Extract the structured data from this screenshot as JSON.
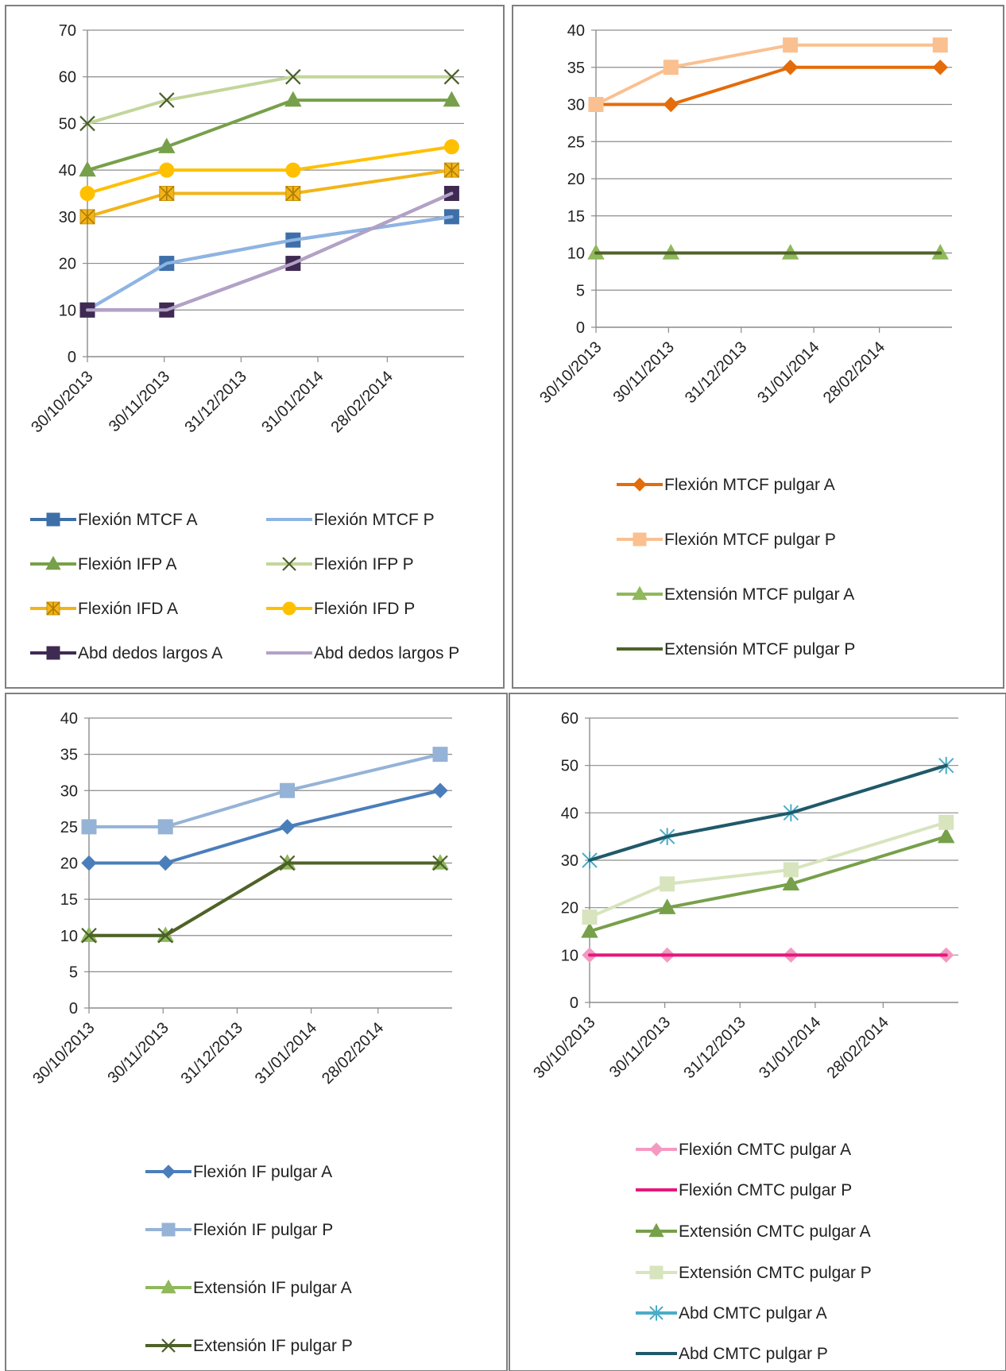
{
  "chart_data": [
    {
      "type": "line",
      "x_labels": [
        "30/10/2013",
        "30/11/2013",
        "31/12/2013",
        "31/01/2014",
        "28/02/2014"
      ],
      "x_points": [
        "30/10/2013",
        "01/12/2013",
        "21/01/2014",
        "26/03/2014"
      ],
      "ylim": [
        0,
        70
      ],
      "yticks": [
        0,
        10,
        20,
        30,
        40,
        50,
        60,
        70
      ],
      "grid": true,
      "legend_position": "bottom",
      "series": [
        {
          "name": "Flexión MTCF A",
          "color": "#3E6FA8",
          "marker": "square",
          "values": [
            10,
            20,
            25,
            30
          ]
        },
        {
          "name": "Flexión MTCF P",
          "color": "#8EB4E3",
          "marker": "none",
          "values": [
            10,
            20,
            25,
            30
          ]
        },
        {
          "name": "Flexión IFP A",
          "color": "#77A04A",
          "marker": "triangle",
          "values": [
            40,
            45,
            55,
            55
          ]
        },
        {
          "name": "Flexión IFP P",
          "color": "#C3D69B",
          "marker": "x",
          "values": [
            50,
            55,
            60,
            60
          ]
        },
        {
          "name": "Flexión IFD A",
          "color": "#F2B418",
          "marker": "square-star",
          "values": [
            30,
            35,
            35,
            40
          ]
        },
        {
          "name": "Flexión IFD P",
          "color": "#FFC000",
          "marker": "circle",
          "values": [
            35,
            40,
            40,
            45
          ]
        },
        {
          "name": "Abd dedos largos A",
          "color": "#3F2A52",
          "marker": "square",
          "values": [
            10,
            10,
            20,
            35
          ]
        },
        {
          "name": "Abd dedos largos P",
          "color": "#B3A2C7",
          "marker": "none",
          "values": [
            10,
            10,
            20,
            35
          ]
        }
      ]
    },
    {
      "type": "line",
      "x_labels": [
        "30/10/2013",
        "30/11/2013",
        "31/12/2013",
        "31/01/2014",
        "28/02/2014"
      ],
      "x_points": [
        "30/10/2013",
        "01/12/2013",
        "21/01/2014",
        "26/03/2014"
      ],
      "ylim": [
        0,
        40
      ],
      "yticks": [
        0,
        5,
        10,
        15,
        20,
        25,
        30,
        35,
        40
      ],
      "grid": true,
      "legend_position": "bottom",
      "series": [
        {
          "name": "Flexión MTCF pulgar A",
          "color": "#E46C0A",
          "marker": "diamond",
          "values": [
            30,
            30,
            35,
            35
          ]
        },
        {
          "name": "Flexión MTCF pulgar P",
          "color": "#FAC090",
          "marker": "square",
          "values": [
            30,
            35,
            38,
            38
          ]
        },
        {
          "name": "Extensión MTCF pulgar A",
          "color": "#8FB95A",
          "marker": "triangle",
          "values": [
            10,
            10,
            10,
            10
          ]
        },
        {
          "name": "Extensión MTCF pulgar P",
          "color": "#4F6228",
          "marker": "none",
          "values": [
            10,
            10,
            10,
            10
          ]
        }
      ]
    },
    {
      "type": "line",
      "x_labels": [
        "30/10/2013",
        "30/11/2013",
        "31/12/2013",
        "31/01/2014",
        "28/02/2014"
      ],
      "x_points": [
        "30/10/2013",
        "01/12/2013",
        "21/01/2014",
        "26/03/2014"
      ],
      "ylim": [
        0,
        40
      ],
      "yticks": [
        0,
        5,
        10,
        15,
        20,
        25,
        30,
        35,
        40
      ],
      "grid": true,
      "legend_position": "bottom",
      "series": [
        {
          "name": "Flexión IF pulgar A",
          "color": "#4A7EBB",
          "marker": "diamond",
          "values": [
            20,
            20,
            25,
            30
          ]
        },
        {
          "name": "Flexión IF pulgar P",
          "color": "#95B3D7",
          "marker": "square",
          "values": [
            25,
            25,
            30,
            35
          ]
        },
        {
          "name": "Extensión IF pulgar A",
          "color": "#8FB95A",
          "marker": "triangle",
          "values": [
            10,
            10,
            20,
            20
          ]
        },
        {
          "name": "Extensión IF pulgar P",
          "color": "#4F6228",
          "marker": "x",
          "values": [
            10,
            10,
            20,
            20
          ]
        }
      ]
    },
    {
      "type": "line",
      "x_labels": [
        "30/10/2013",
        "30/11/2013",
        "31/12/2013",
        "31/01/2014",
        "28/02/2014"
      ],
      "x_points": [
        "30/10/2013",
        "01/12/2013",
        "21/01/2014",
        "26/03/2014"
      ],
      "ylim": [
        0,
        60
      ],
      "yticks": [
        0,
        10,
        20,
        30,
        40,
        50,
        60
      ],
      "grid": true,
      "legend_position": "bottom",
      "series": [
        {
          "name": "Flexión CMTC pulgar A",
          "color": "#F49AC2",
          "marker": "diamond",
          "values": [
            10,
            10,
            10,
            10
          ]
        },
        {
          "name": "Flexión CMTC pulgar P",
          "color": "#E6177A",
          "marker": "none",
          "values": [
            10,
            10,
            10,
            10
          ]
        },
        {
          "name": "Extensión CMTC pulgar A",
          "color": "#77A04A",
          "marker": "triangle",
          "values": [
            15,
            20,
            25,
            35
          ]
        },
        {
          "name": "Extensión CMTC pulgar P",
          "color": "#D7E4BD",
          "marker": "square",
          "values": [
            18,
            25,
            28,
            38
          ]
        },
        {
          "name": "Abd CMTC pulgar A",
          "color": "#4BACC6",
          "marker": "asterisk",
          "values": [
            30,
            35,
            40,
            50
          ]
        },
        {
          "name": "Abd CMTC pulgar P",
          "color": "#215968",
          "marker": "none",
          "values": [
            30,
            35,
            40,
            50
          ]
        }
      ]
    }
  ]
}
